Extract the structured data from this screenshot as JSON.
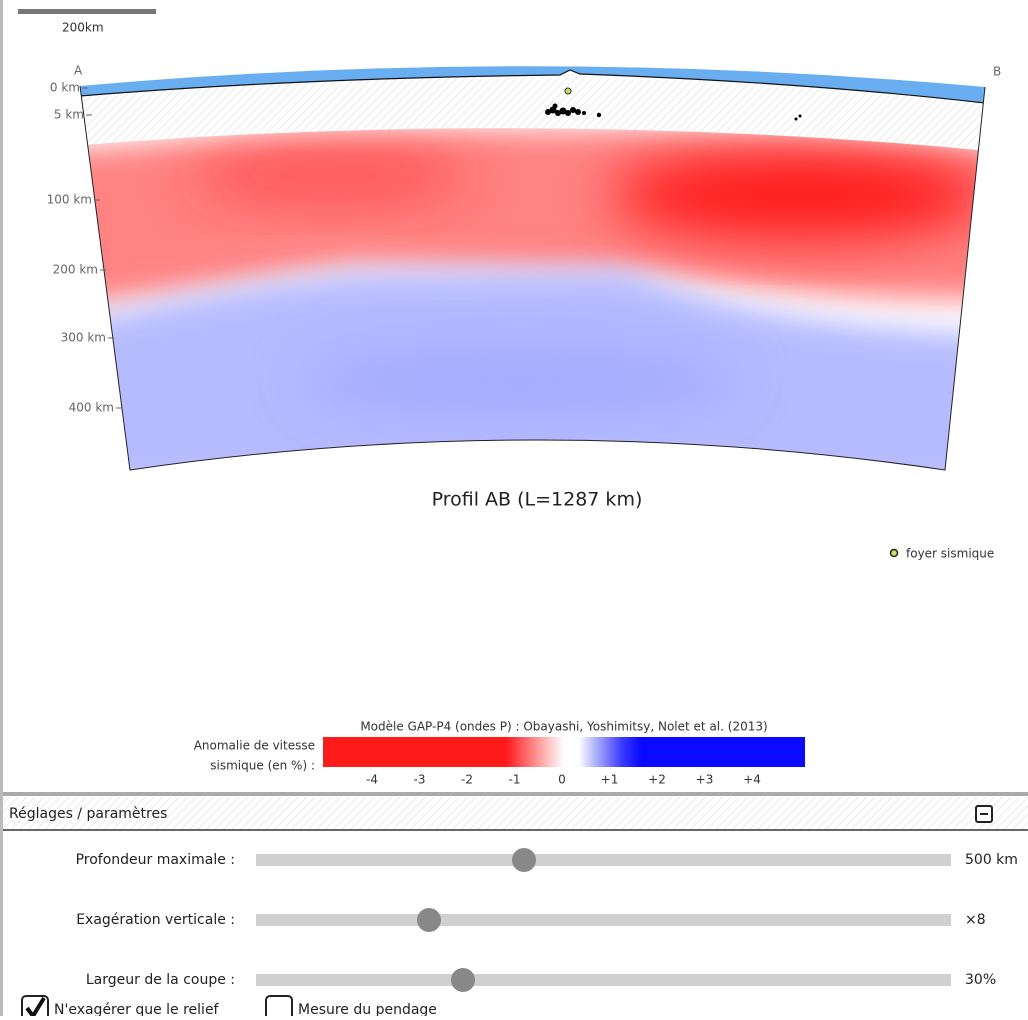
{
  "scale_bar": {
    "label": "200km"
  },
  "profile": {
    "start_label": "A",
    "end_label": "B",
    "depth_labels": [
      "0 km",
      "5 km",
      "100 km",
      "200 km",
      "300 km",
      "400 km"
    ],
    "title": "Profil AB (L=1287 km)"
  },
  "legend": {
    "label": "foyer sismique"
  },
  "colorbar": {
    "title": "Modèle GAP-P4 (ondes P) : Obayashi, Yoshimitsy, Nolet et al. (2013)",
    "label_lines": [
      "Anomalie de vitesse",
      "sismique (en %) :"
    ],
    "ticks": [
      "-4",
      "-3",
      "-2",
      "-1",
      "0",
      "+1",
      "+2",
      "+3",
      "+4"
    ]
  },
  "settings": {
    "title": "Réglages / paramètres",
    "sliders": [
      {
        "label": "Profondeur maximale :",
        "value": "500 km"
      },
      {
        "label": "Exagération verticale :",
        "value": "×8"
      },
      {
        "label": "Largeur de la coupe :",
        "value": "30%"
      }
    ],
    "checkboxes": [
      {
        "label": "N'exagérer que le relief",
        "checked": true
      },
      {
        "label": "Mesure du pendage",
        "checked": false
      }
    ]
  }
}
